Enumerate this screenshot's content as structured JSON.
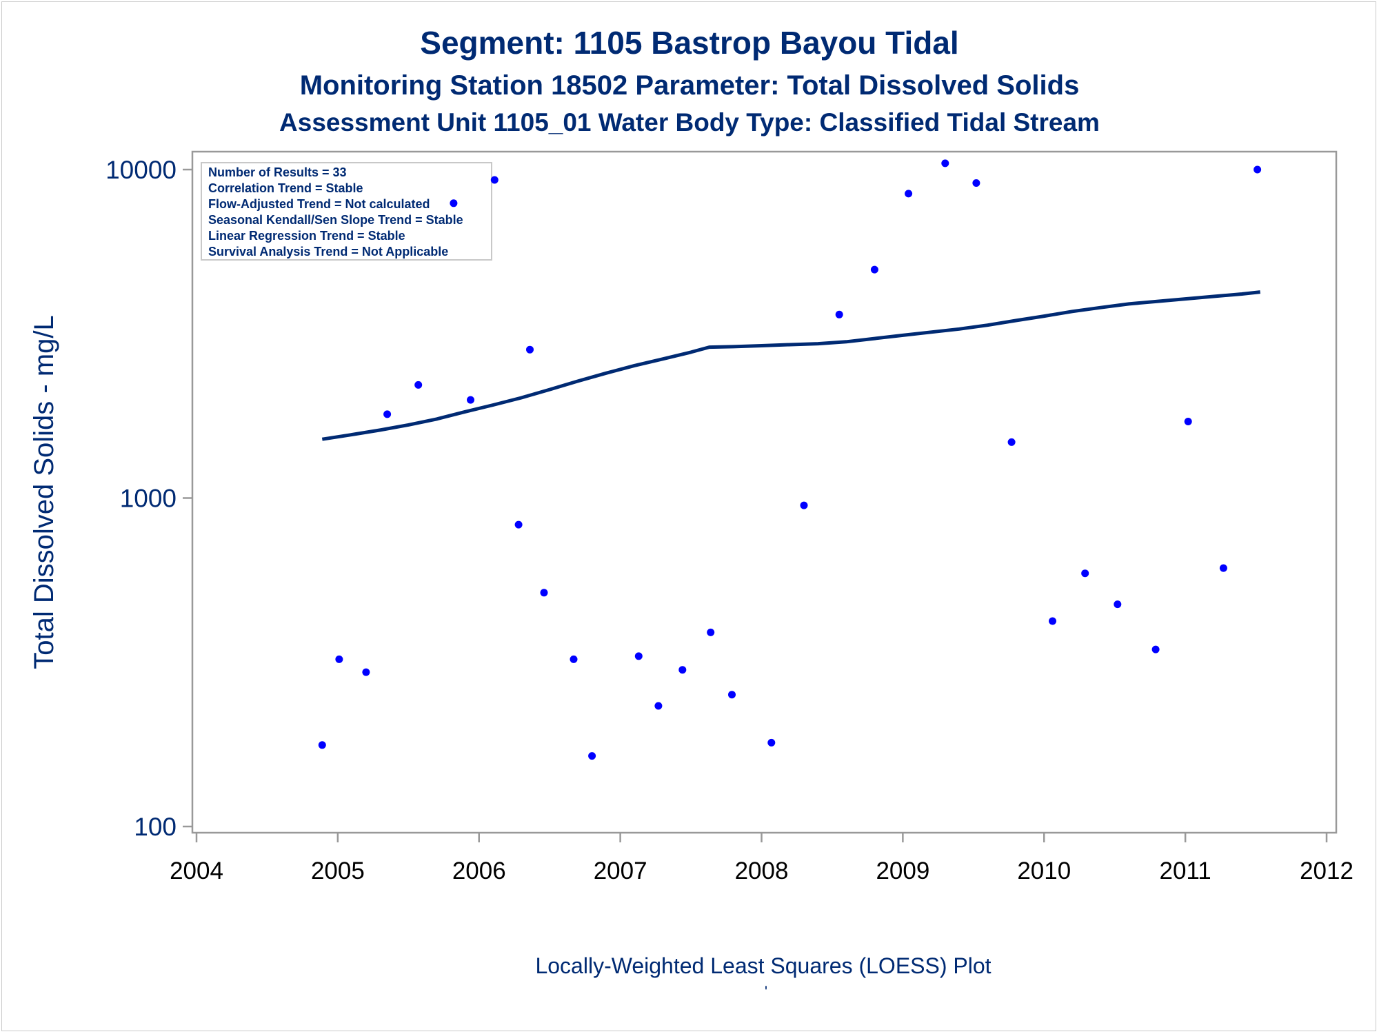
{
  "chart_data": {
    "type": "scatter",
    "title": "Segment: 1105  Bastrop Bayou Tidal",
    "subtitle": "Monitoring Station 18502 Parameter: Total Dissolved Solids",
    "subtitle2": "Assessment Unit 1105_01   Water Body Type: Classified Tidal Stream",
    "xlabel": "Locally-Weighted Least Squares (LOESS) Plot",
    "ylabel": "Total Dissolved Solids - mg/L",
    "footnote": "'",
    "yscale": "log",
    "xlim": [
      2004,
      2012
    ],
    "ylim": [
      100,
      10000
    ],
    "xticks": [
      "2004",
      "2005",
      "2006",
      "2007",
      "2008",
      "2009",
      "2010",
      "2011",
      "2012"
    ],
    "yticks": [
      "100",
      "1000",
      "10000"
    ],
    "grid": false,
    "legend_position": "top-left",
    "annotation_lines": [
      "Number of Results = 33",
      "Correlation Trend = Stable",
      "Flow-Adjusted Trend = Not calculated",
      "Seasonal Kendall/Sen Slope Trend = Stable",
      "Linear Regression Trend = Stable",
      "Survival Analysis Trend = Not Applicable"
    ],
    "points": [
      {
        "x": 2004.89,
        "y": 177
      },
      {
        "x": 2005.01,
        "y": 323
      },
      {
        "x": 2005.2,
        "y": 295
      },
      {
        "x": 2005.35,
        "y": 1800
      },
      {
        "x": 2005.57,
        "y": 2210
      },
      {
        "x": 2005.82,
        "y": 7900
      },
      {
        "x": 2005.94,
        "y": 1990
      },
      {
        "x": 2006.11,
        "y": 9300
      },
      {
        "x": 2006.28,
        "y": 830
      },
      {
        "x": 2006.36,
        "y": 2830
      },
      {
        "x": 2006.46,
        "y": 515
      },
      {
        "x": 2006.67,
        "y": 323
      },
      {
        "x": 2006.8,
        "y": 164
      },
      {
        "x": 2007.13,
        "y": 330
      },
      {
        "x": 2007.27,
        "y": 233
      },
      {
        "x": 2007.44,
        "y": 300
      },
      {
        "x": 2007.64,
        "y": 390
      },
      {
        "x": 2007.79,
        "y": 252
      },
      {
        "x": 2008.07,
        "y": 180
      },
      {
        "x": 2008.3,
        "y": 950
      },
      {
        "x": 2008.55,
        "y": 3620
      },
      {
        "x": 2008.8,
        "y": 4960
      },
      {
        "x": 2009.04,
        "y": 8450
      },
      {
        "x": 2009.3,
        "y": 10450
      },
      {
        "x": 2009.52,
        "y": 9100
      },
      {
        "x": 2009.77,
        "y": 1480
      },
      {
        "x": 2010.06,
        "y": 422
      },
      {
        "x": 2010.29,
        "y": 590
      },
      {
        "x": 2010.52,
        "y": 475
      },
      {
        "x": 2010.79,
        "y": 346
      },
      {
        "x": 2011.02,
        "y": 1710
      },
      {
        "x": 2011.27,
        "y": 612
      },
      {
        "x": 2011.51,
        "y": 10000
      }
    ],
    "loess": [
      {
        "x": 2004.89,
        "y": 1510
      },
      {
        "x": 2005.1,
        "y": 1560
      },
      {
        "x": 2005.3,
        "y": 1610
      },
      {
        "x": 2005.5,
        "y": 1670
      },
      {
        "x": 2005.7,
        "y": 1740
      },
      {
        "x": 2005.9,
        "y": 1830
      },
      {
        "x": 2006.1,
        "y": 1920
      },
      {
        "x": 2006.3,
        "y": 2020
      },
      {
        "x": 2006.5,
        "y": 2140
      },
      {
        "x": 2006.7,
        "y": 2270
      },
      {
        "x": 2006.9,
        "y": 2400
      },
      {
        "x": 2007.1,
        "y": 2530
      },
      {
        "x": 2007.3,
        "y": 2650
      },
      {
        "x": 2007.5,
        "y": 2780
      },
      {
        "x": 2007.63,
        "y": 2880
      },
      {
        "x": 2007.8,
        "y": 2890
      },
      {
        "x": 2008.0,
        "y": 2910
      },
      {
        "x": 2008.2,
        "y": 2930
      },
      {
        "x": 2008.4,
        "y": 2950
      },
      {
        "x": 2008.6,
        "y": 2990
      },
      {
        "x": 2008.8,
        "y": 3060
      },
      {
        "x": 2009.0,
        "y": 3130
      },
      {
        "x": 2009.2,
        "y": 3200
      },
      {
        "x": 2009.4,
        "y": 3270
      },
      {
        "x": 2009.6,
        "y": 3360
      },
      {
        "x": 2009.8,
        "y": 3470
      },
      {
        "x": 2010.0,
        "y": 3580
      },
      {
        "x": 2010.2,
        "y": 3700
      },
      {
        "x": 2010.4,
        "y": 3800
      },
      {
        "x": 2010.6,
        "y": 3900
      },
      {
        "x": 2010.8,
        "y": 3970
      },
      {
        "x": 2011.0,
        "y": 4040
      },
      {
        "x": 2011.2,
        "y": 4110
      },
      {
        "x": 2011.4,
        "y": 4180
      },
      {
        "x": 2011.53,
        "y": 4240
      }
    ],
    "colors": {
      "points": "#0000ff",
      "line": "#002a73",
      "text": "#002a73",
      "axis": "#999999"
    }
  }
}
